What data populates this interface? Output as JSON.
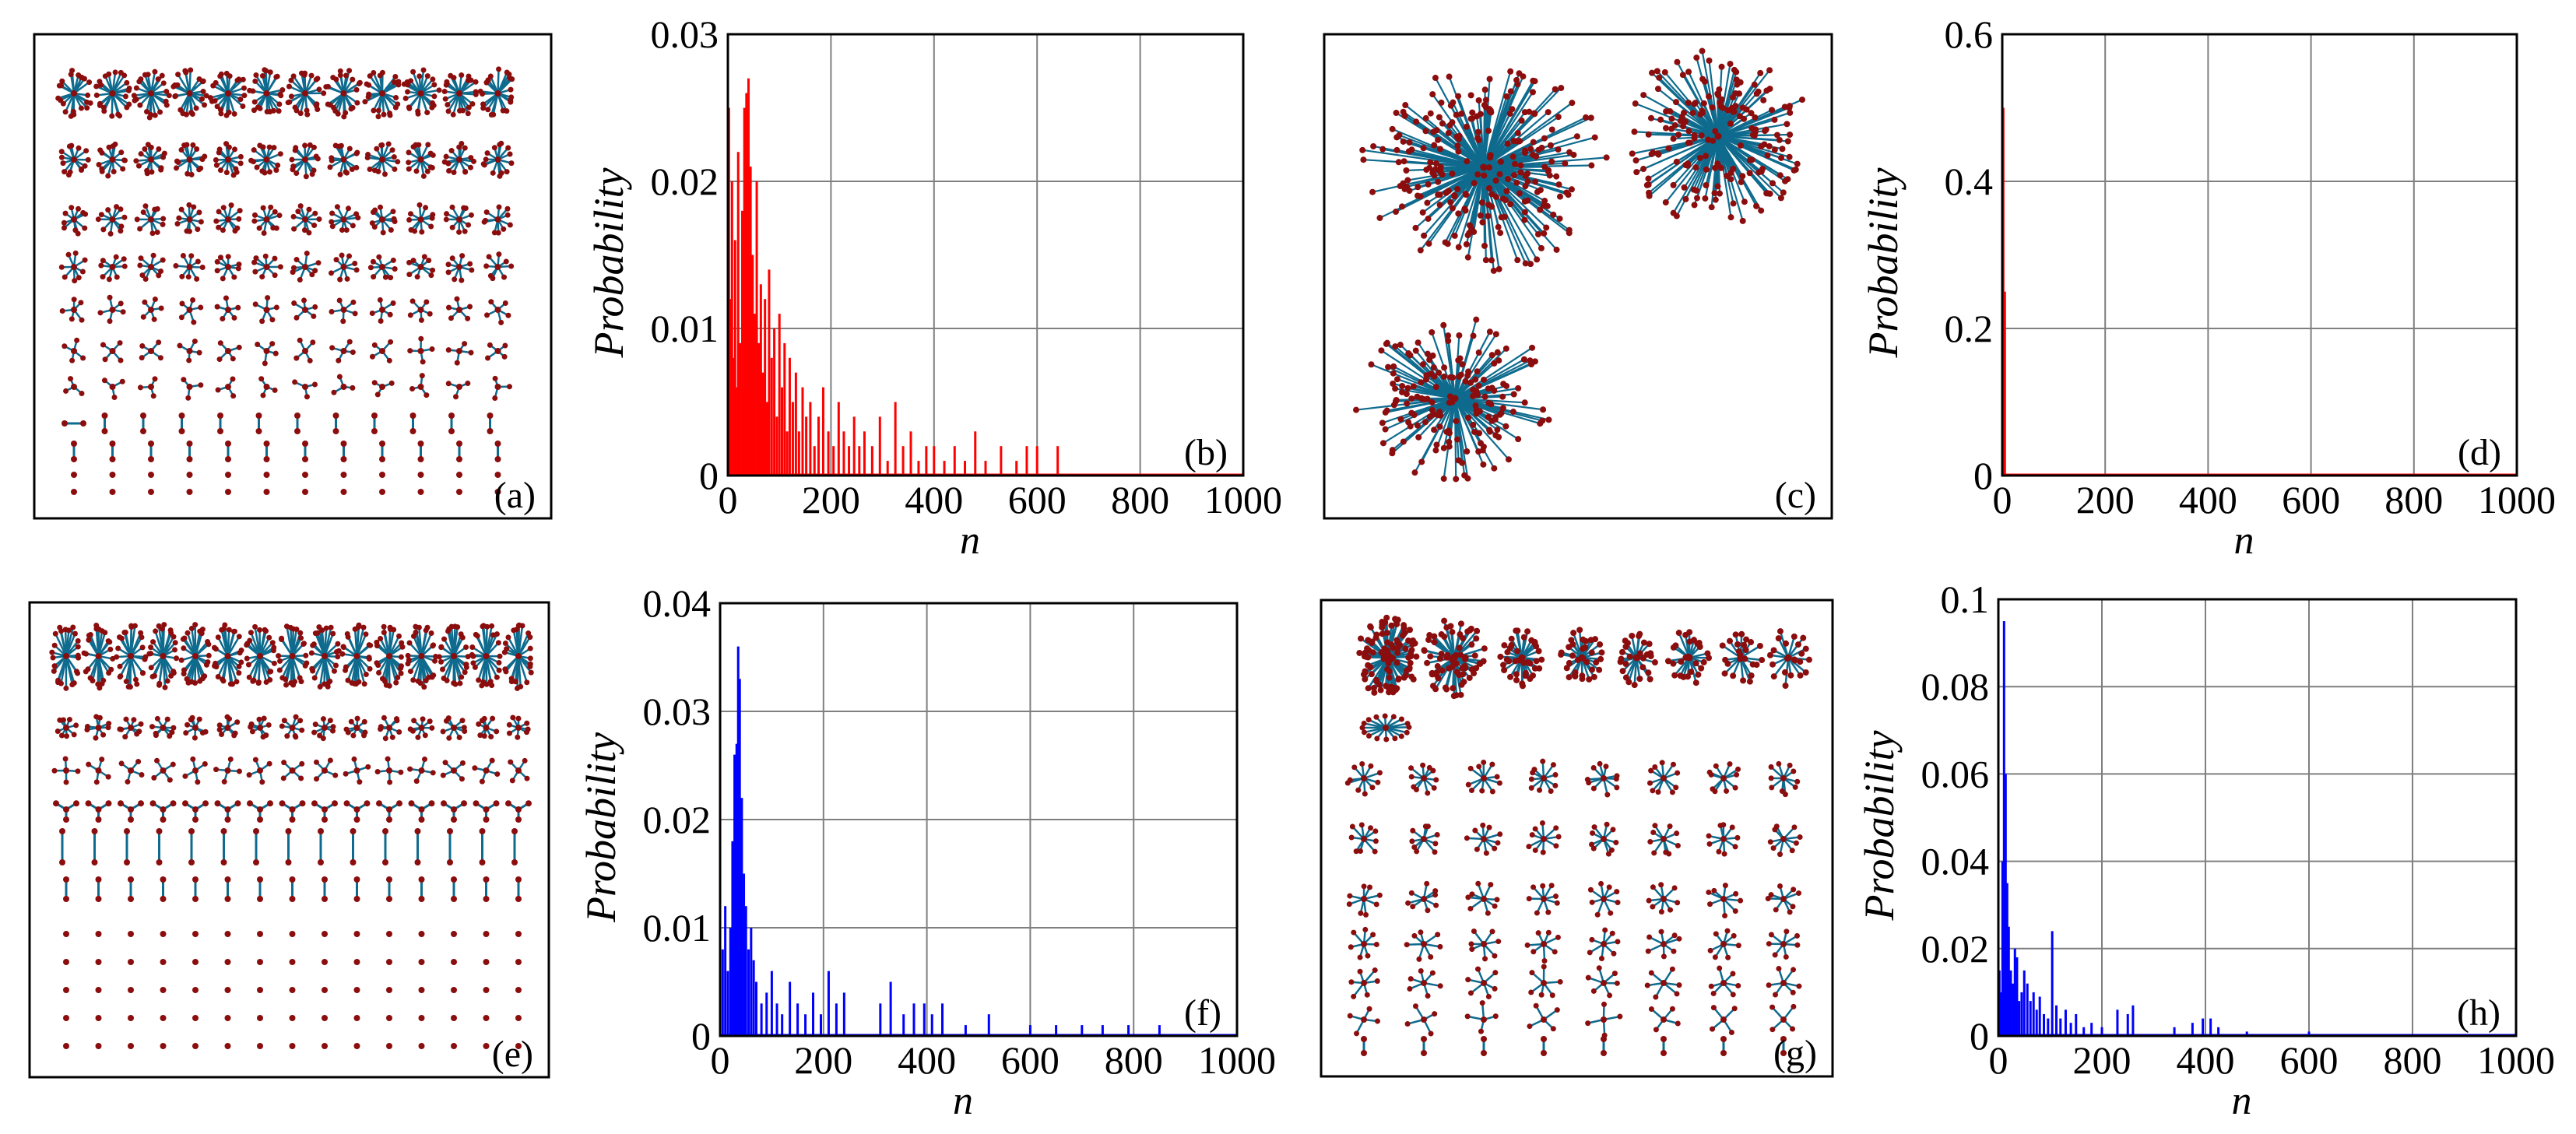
{
  "figure": {
    "panels": [
      {
        "label": "(a)",
        "kind": "network",
        "description_name": "many small components"
      },
      {
        "label": "(c)",
        "kind": "network",
        "description_name": "three large hub components"
      },
      {
        "label": "(e)",
        "kind": "network",
        "description_name": "many chain-like components"
      },
      {
        "label": "(g)",
        "kind": "network",
        "description_name": "mixed star components"
      }
    ]
  },
  "colors": {
    "edge": "#0e6b8e",
    "node": "#8b0d0d",
    "red_series": "#ff0000",
    "blue_series": "#0000ff",
    "grid": "#7f7f7f",
    "axis": "#000000"
  },
  "chart_data": [
    {
      "id": "b",
      "type": "bar",
      "panel_label": "(b)",
      "xlabel": "n",
      "ylabel": "Probability",
      "xlim": [
        0,
        1000
      ],
      "ylim": [
        0,
        0.03
      ],
      "xticks": [
        0,
        200,
        400,
        600,
        800,
        1000
      ],
      "xtick_labels": [
        "0",
        "200",
        "400",
        "600",
        "800",
        "1000"
      ],
      "yticks": [
        0,
        0.01,
        0.02,
        0.03
      ],
      "ytick_labels": [
        "0",
        "0.01",
        "0.02",
        "0.03"
      ],
      "color": "#ff0000",
      "x": [
        2,
        5,
        8,
        11,
        14,
        17,
        20,
        24,
        28,
        32,
        36,
        40,
        44,
        48,
        52,
        56,
        60,
        64,
        68,
        72,
        76,
        80,
        85,
        90,
        95,
        100,
        105,
        110,
        115,
        120,
        126,
        132,
        138,
        145,
        152,
        160,
        168,
        176,
        185,
        195,
        205,
        215,
        225,
        235,
        245,
        255,
        265,
        280,
        295,
        310,
        325,
        340,
        355,
        370,
        385,
        400,
        420,
        440,
        460,
        480,
        500,
        530,
        560,
        580,
        600,
        640
      ],
      "values": [
        0.025,
        0.012,
        0.02,
        0.008,
        0.016,
        0.006,
        0.022,
        0.009,
        0.018,
        0.025,
        0.026,
        0.027,
        0.021,
        0.015,
        0.011,
        0.02,
        0.009,
        0.013,
        0.007,
        0.012,
        0.005,
        0.014,
        0.008,
        0.01,
        0.004,
        0.011,
        0.006,
        0.009,
        0.003,
        0.008,
        0.005,
        0.007,
        0.003,
        0.006,
        0.004,
        0.005,
        0.002,
        0.004,
        0.006,
        0.003,
        0.002,
        0.005,
        0.003,
        0.002,
        0.004,
        0.002,
        0.003,
        0.002,
        0.004,
        0.001,
        0.005,
        0.002,
        0.003,
        0.001,
        0.002,
        0.002,
        0.001,
        0.002,
        0.001,
        0.003,
        0.001,
        0.002,
        0.001,
        0.002,
        0.002,
        0.002
      ]
    },
    {
      "id": "d",
      "type": "bar",
      "panel_label": "(d)",
      "xlabel": "n",
      "ylabel": "Probability",
      "xlim": [
        0,
        1000
      ],
      "ylim": [
        0,
        0.6
      ],
      "xticks": [
        0,
        200,
        400,
        600,
        800,
        1000
      ],
      "xtick_labels": [
        "0",
        "200",
        "400",
        "600",
        "800",
        "1000"
      ],
      "yticks": [
        0,
        0.2,
        0.4,
        0.6
      ],
      "ytick_labels": [
        "0",
        "0.2",
        "0.4",
        "0.6"
      ],
      "color": "#ff0000",
      "x": [
        2,
        5
      ],
      "values": [
        0.5,
        0.25
      ]
    },
    {
      "id": "f",
      "type": "bar",
      "panel_label": "(f)",
      "xlabel": "n",
      "ylabel": "Probability",
      "xlim": [
        0,
        1000
      ],
      "ylim": [
        0,
        0.04
      ],
      "xticks": [
        0,
        200,
        400,
        600,
        800,
        1000
      ],
      "xtick_labels": [
        "0",
        "200",
        "400",
        "600",
        "800",
        "1000"
      ],
      "yticks": [
        0,
        0.01,
        0.02,
        0.03,
        0.04
      ],
      "ytick_labels": [
        "0",
        "0.01",
        "0.02",
        "0.03",
        "0.04"
      ],
      "color": "#0000ff",
      "x": [
        5,
        10,
        15,
        20,
        24,
        28,
        32,
        35,
        38,
        42,
        46,
        50,
        55,
        60,
        65,
        70,
        80,
        90,
        100,
        110,
        120,
        135,
        150,
        165,
        180,
        195,
        210,
        225,
        240,
        310,
        330,
        355,
        375,
        395,
        410,
        430,
        475,
        520,
        600,
        650,
        700,
        740,
        790,
        850
      ],
      "values": [
        0.008,
        0.012,
        0.006,
        0.01,
        0.018,
        0.026,
        0.027,
        0.036,
        0.033,
        0.022,
        0.015,
        0.012,
        0.008,
        0.01,
        0.007,
        0.005,
        0.003,
        0.004,
        0.006,
        0.003,
        0.002,
        0.005,
        0.003,
        0.002,
        0.004,
        0.002,
        0.006,
        0.003,
        0.004,
        0.003,
        0.005,
        0.002,
        0.003,
        0.003,
        0.002,
        0.003,
        0.001,
        0.002,
        0.001,
        0.001,
        0.001,
        0.001,
        0.001,
        0.001
      ]
    },
    {
      "id": "h",
      "type": "bar",
      "panel_label": "(h)",
      "xlabel": "n",
      "ylabel": "Probability",
      "xlim": [
        0,
        1000
      ],
      "ylim": [
        0,
        0.1
      ],
      "xticks": [
        0,
        200,
        400,
        600,
        800,
        1000
      ],
      "xtick_labels": [
        "0",
        "200",
        "400",
        "600",
        "800",
        "1000"
      ],
      "yticks": [
        0,
        0.02,
        0.04,
        0.06,
        0.08,
        0.1
      ],
      "ytick_labels": [
        "0",
        "0.02",
        "0.04",
        "0.06",
        "0.08",
        "0.1"
      ],
      "color": "#0000ff",
      "x": [
        2,
        5,
        8,
        11,
        14,
        17,
        20,
        24,
        28,
        32,
        36,
        40,
        45,
        50,
        56,
        62,
        68,
        74,
        80,
        88,
        96,
        104,
        112,
        120,
        130,
        140,
        150,
        165,
        180,
        200,
        230,
        250,
        260,
        340,
        375,
        395,
        410,
        425,
        480,
        600
      ],
      "values": [
        0.015,
        0.01,
        0.04,
        0.095,
        0.06,
        0.035,
        0.025,
        0.015,
        0.012,
        0.02,
        0.018,
        0.008,
        0.01,
        0.015,
        0.012,
        0.008,
        0.01,
        0.006,
        0.009,
        0.005,
        0.004,
        0.024,
        0.007,
        0.004,
        0.006,
        0.003,
        0.005,
        0.002,
        0.003,
        0.002,
        0.006,
        0.005,
        0.007,
        0.002,
        0.003,
        0.004,
        0.004,
        0.002,
        0.001,
        0.001
      ]
    }
  ]
}
